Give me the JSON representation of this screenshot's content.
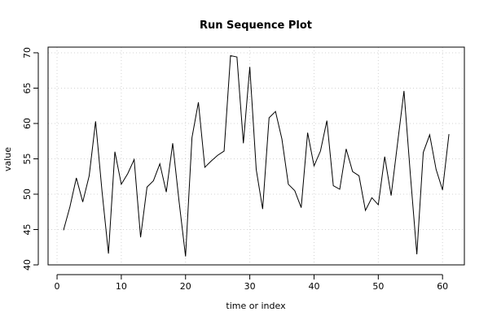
{
  "chart_data": {
    "type": "line",
    "title": "Run Sequence Plot",
    "xlabel": "time or index",
    "ylabel": "value",
    "xlim": [
      -1.4,
      63.4
    ],
    "ylim": [
      40,
      70.8
    ],
    "grid": true,
    "x_ticks": [
      0,
      10,
      20,
      30,
      40,
      50,
      60
    ],
    "y_ticks": [
      40,
      45,
      50,
      55,
      60,
      65,
      70
    ],
    "x": [
      1,
      2,
      3,
      4,
      5,
      6,
      7,
      8,
      9,
      10,
      11,
      12,
      13,
      14,
      15,
      16,
      17,
      18,
      19,
      20,
      21,
      22,
      23,
      24,
      25,
      26,
      27,
      28,
      29,
      30,
      31,
      32,
      33,
      34,
      35,
      36,
      37,
      38,
      39,
      40,
      41,
      42,
      43,
      44,
      45,
      46,
      47,
      48,
      49,
      50,
      51,
      52,
      53,
      54,
      55,
      56,
      57,
      58,
      59,
      60,
      61
    ],
    "series": [
      {
        "values": [
          44.9,
          48.2,
          52.3,
          48.9,
          52.6,
          60.3,
          50.4,
          41.6,
          56.0,
          51.4,
          52.9,
          54.9,
          43.9,
          51.0,
          51.9,
          54.3,
          50.3,
          57.2,
          48.9,
          41.2,
          58.0,
          63.0,
          53.8,
          54.7,
          55.5,
          56.1,
          69.6,
          69.4,
          57.2,
          68.0,
          53.5,
          47.9,
          60.8,
          61.7,
          57.8,
          51.4,
          50.5,
          48.1,
          58.7,
          54.0,
          56.1,
          60.4,
          51.2,
          50.7,
          56.4,
          53.2,
          52.6,
          47.7,
          49.5,
          48.5,
          55.3,
          49.8,
          57.2,
          64.6,
          52.7,
          41.5,
          55.9,
          58.4,
          53.5,
          50.6,
          58.5
        ]
      }
    ]
  }
}
